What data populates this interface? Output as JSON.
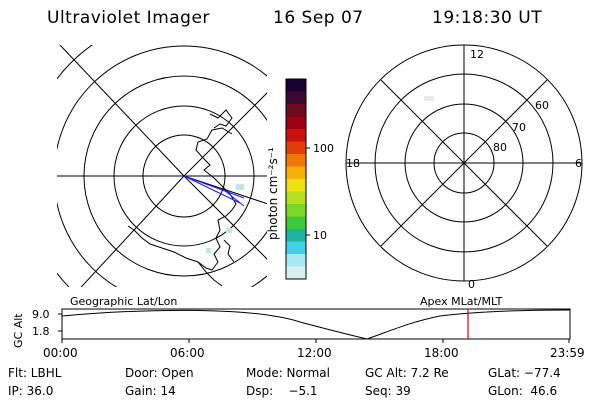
{
  "header": {
    "instrument": "Ultraviolet Imager",
    "date": "16 Sep 07",
    "time": "19:18:30 UT"
  },
  "left_panel": {
    "caption": "Geographic Lat/Lon"
  },
  "right_panel": {
    "caption": "Apex MLat/MLT",
    "mlt_labels": {
      "top": "12",
      "left": "18",
      "right": "6",
      "bottom": "0"
    },
    "lat_labels": [
      "80",
      "70",
      "60"
    ]
  },
  "colorbar": {
    "unit_label": "photon cm⁻²s⁻¹",
    "ticks": [
      "100",
      "10"
    ],
    "colors": [
      "#1a0033",
      "#3c0a2e",
      "#6e0a1e",
      "#a00014",
      "#cc1010",
      "#e23c0a",
      "#f0780a",
      "#f8b00a",
      "#f0e010",
      "#b8e01e",
      "#7cd828",
      "#40c83c",
      "#20b4a0",
      "#40d0e8",
      "#a8e8f0",
      "#d8f0f0"
    ]
  },
  "altitude_strip": {
    "axis_label": "GC Alt",
    "y_ticks": [
      "9.0",
      "1.8"
    ],
    "x_ticks": [
      "00:00",
      "06:00",
      "12:00",
      "18:00",
      "23:59"
    ],
    "marker_time": "19:18:30",
    "marker_color": "#dd0000",
    "curve_color": "#000000"
  },
  "info": {
    "row1": {
      "filter": "Flt: LBHL",
      "door": "Door: Open",
      "mode": "Mode: Normal",
      "gcalt": "GC Alt: 7.2 Re",
      "glat": "GLat: −77.4"
    },
    "row2": {
      "ip": "IP: 36.0",
      "gain": "Gain: 14",
      "dsp": "Dsp:    −5.1",
      "seq": "Seq: 39",
      "glon": "GLon:  46.6"
    }
  },
  "colors": {
    "map_line": "#000000",
    "boundary_line": "#1a1aff",
    "faint_emission": "#bfe4ea"
  }
}
